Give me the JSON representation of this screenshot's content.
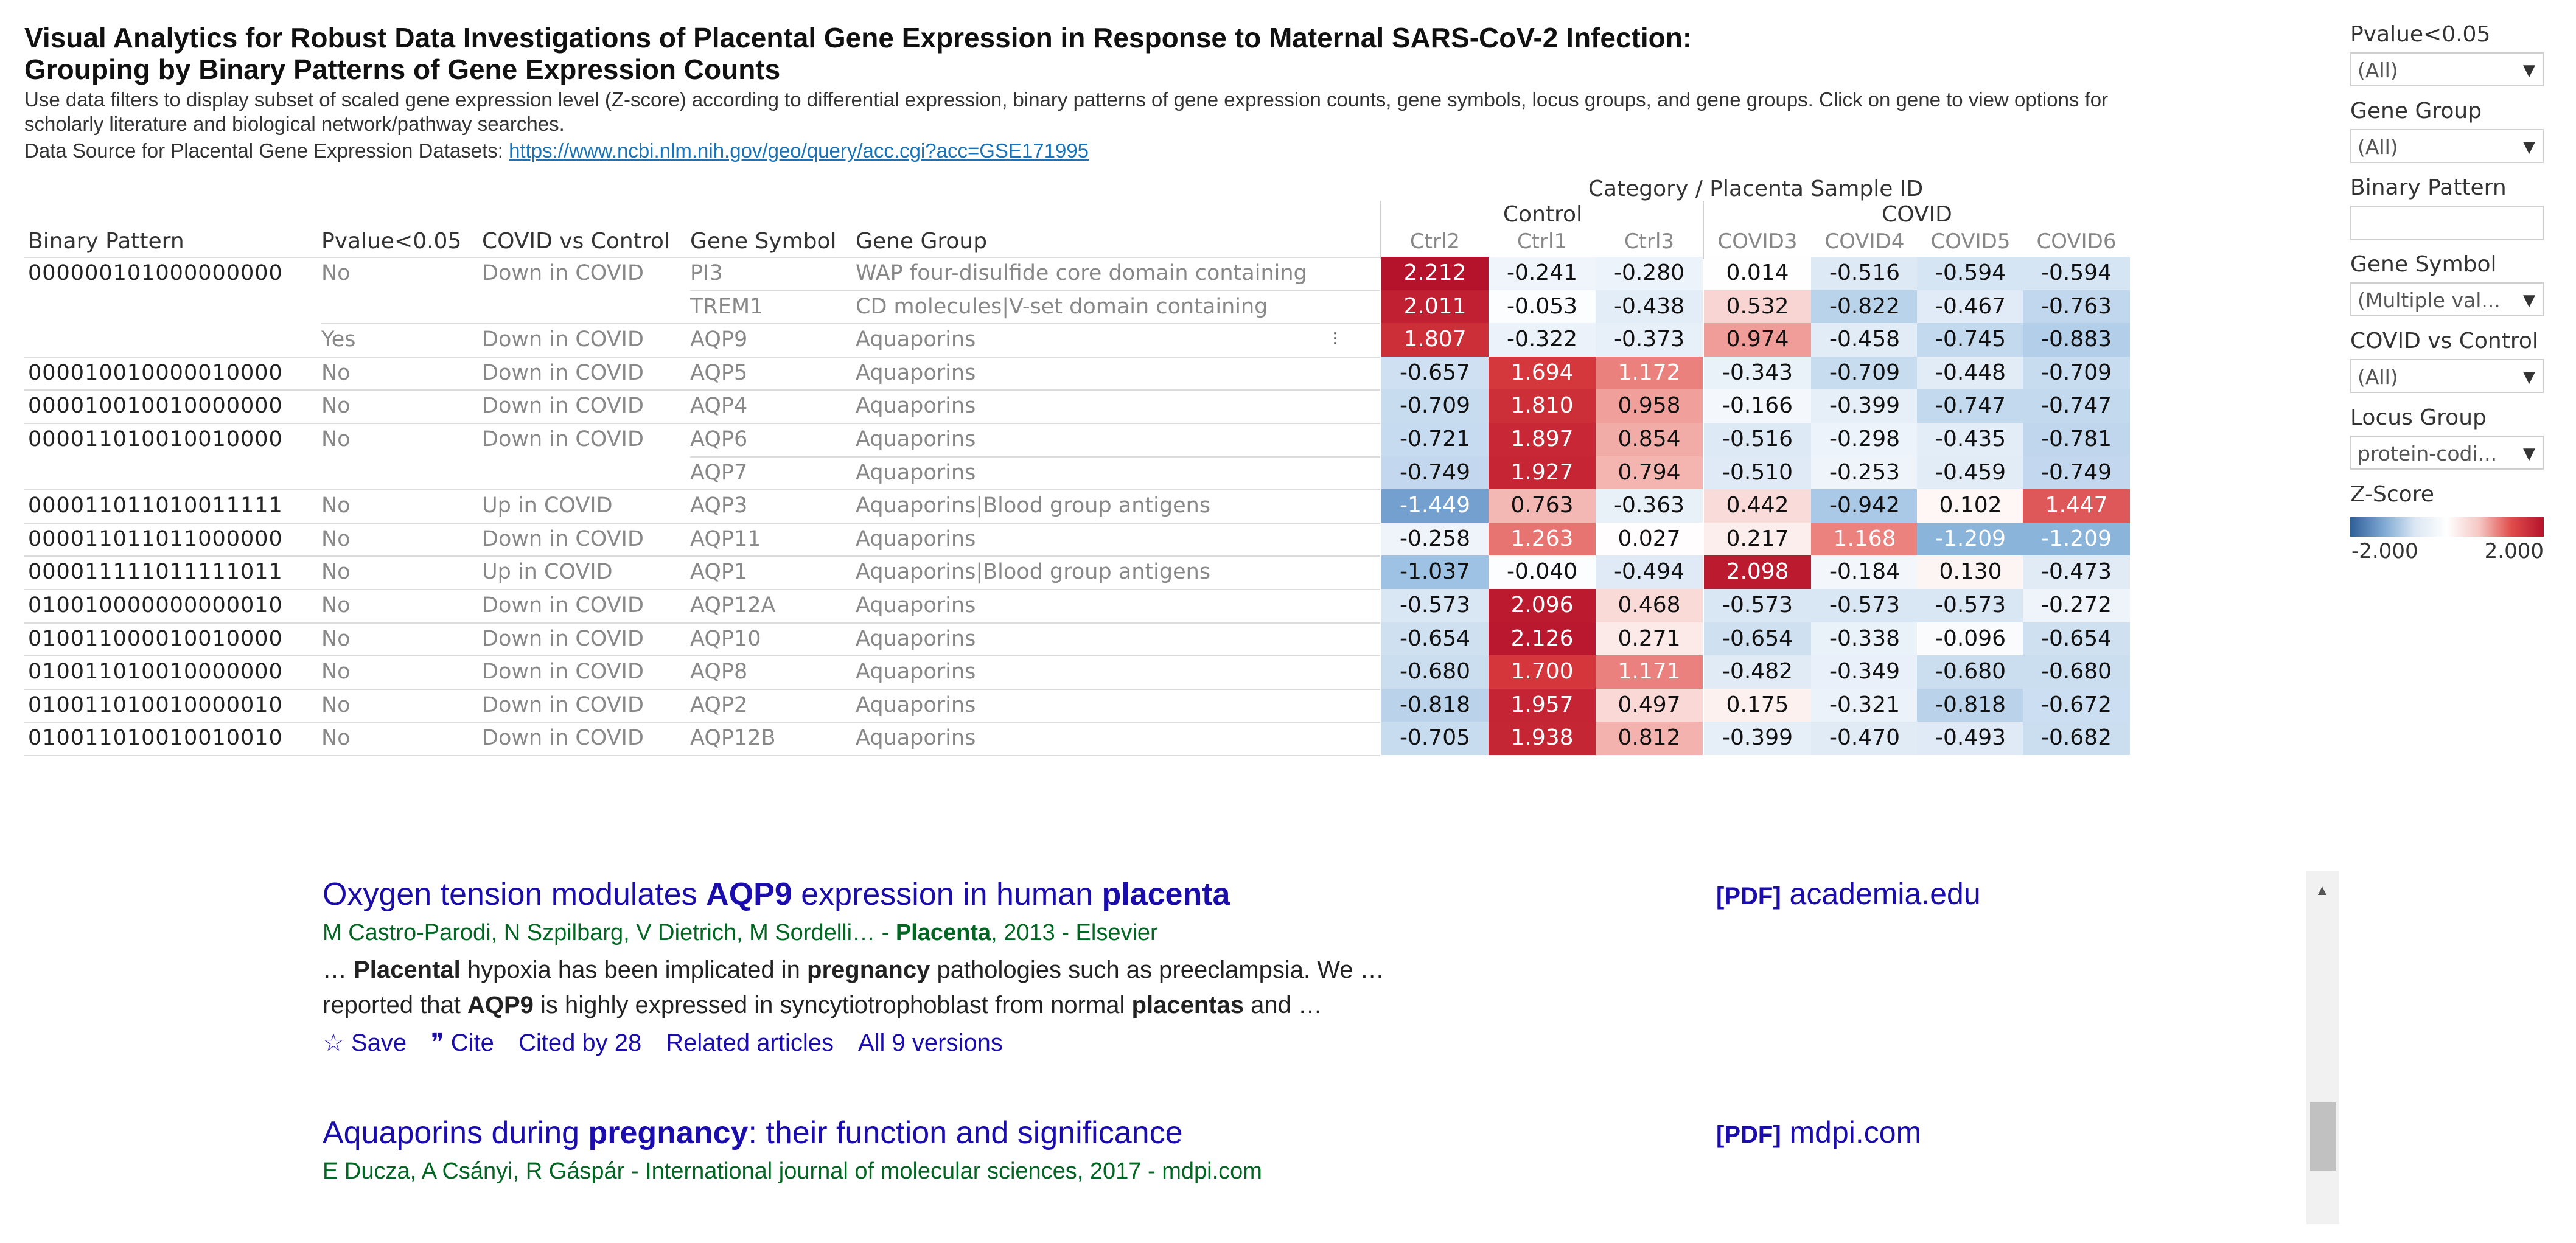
{
  "header": {
    "title_line1": "Visual Analytics for Robust Data Investigations of Placental Gene Expression in Response to Maternal SARS-CoV-2 Infection:",
    "title_line2": "Grouping by Binary Patterns of Gene Expression Counts",
    "description": "Use data filters to display subset of scaled gene expression level (Z-score) according to differential expression, binary patterns of gene expression counts, gene symbols, locus groups, and gene groups. Click on gene to view options for scholarly literature and biological network/pathway searches.",
    "source_label": "Data Source for Placental Gene Expression Datasets: ",
    "source_link": "https://www.ncbi.nlm.nih.gov/geo/query/acc.cgi?acc=GSE171995"
  },
  "table": {
    "category_header": "Category  /  Placenta Sample ID",
    "group_control": "Control",
    "group_covid": "COVID",
    "columns": {
      "binary": "Binary Pattern",
      "pvalue": "Pvalue<0.05",
      "covid_vs_control": "COVID vs Control",
      "gene_symbol": "Gene Symbol",
      "gene_group": "Gene Group"
    },
    "samples": [
      "Ctrl2",
      "Ctrl1",
      "Ctrl3",
      "COVID3",
      "COVID4",
      "COVID5",
      "COVID6"
    ],
    "rows": [
      {
        "bp": "000000101000000000",
        "pv": "No",
        "cvc": "Down in COVID",
        "sym": "PI3",
        "grp": "WAP four-disulfide core domain containing",
        "vals": [
          "2.212",
          "-0.241",
          "-0.280",
          "0.014",
          "-0.516",
          "-0.594",
          "-0.594"
        ],
        "z": [
          2.212,
          -0.241,
          -0.28,
          0.014,
          -0.516,
          -0.594,
          -0.594
        ]
      },
      {
        "bp": "",
        "pv": "",
        "cvc": "",
        "sym": "TREM1",
        "grp": "CD molecules|V-set domain containing",
        "vals": [
          "2.011",
          "-0.053",
          "-0.438",
          "0.532",
          "-0.822",
          "-0.467",
          "-0.763"
        ],
        "z": [
          2.011,
          -0.053,
          -0.438,
          0.532,
          -0.822,
          -0.467,
          -0.763
        ]
      },
      {
        "bp": "",
        "pv": "Yes",
        "cvc": "Down in COVID",
        "sym": "AQP9",
        "grp": "Aquaporins",
        "vals": [
          "1.807",
          "-0.322",
          "-0.373",
          "0.974",
          "-0.458",
          "-0.745",
          "-0.883"
        ],
        "z": [
          1.807,
          -0.322,
          -0.373,
          0.974,
          -0.458,
          -0.745,
          -0.883
        ]
      },
      {
        "bp": "000010010000010000",
        "pv": "No",
        "cvc": "Down in COVID",
        "sym": "AQP5",
        "grp": "Aquaporins",
        "vals": [
          "-0.657",
          "1.694",
          "1.172",
          "-0.343",
          "-0.709",
          "-0.448",
          "-0.709"
        ],
        "z": [
          -0.657,
          1.694,
          1.172,
          -0.343,
          -0.709,
          -0.448,
          -0.709
        ]
      },
      {
        "bp": "000010010010000000",
        "pv": "No",
        "cvc": "Down in COVID",
        "sym": "AQP4",
        "grp": "Aquaporins",
        "vals": [
          "-0.709",
          "1.810",
          "0.958",
          "-0.166",
          "-0.399",
          "-0.747",
          "-0.747"
        ],
        "z": [
          -0.709,
          1.81,
          0.958,
          -0.166,
          -0.399,
          -0.747,
          -0.747
        ]
      },
      {
        "bp": "000011010010010000",
        "pv": "No",
        "cvc": "Down in COVID",
        "sym": "AQP6",
        "grp": "Aquaporins",
        "vals": [
          "-0.721",
          "1.897",
          "0.854",
          "-0.516",
          "-0.298",
          "-0.435",
          "-0.781"
        ],
        "z": [
          -0.721,
          1.897,
          0.854,
          -0.516,
          -0.298,
          -0.435,
          -0.781
        ]
      },
      {
        "bp": "",
        "pv": "",
        "cvc": "",
        "sym": "AQP7",
        "grp": "Aquaporins",
        "vals": [
          "-0.749",
          "1.927",
          "0.794",
          "-0.510",
          "-0.253",
          "-0.459",
          "-0.749"
        ],
        "z": [
          -0.749,
          1.927,
          0.794,
          -0.51,
          -0.253,
          -0.459,
          -0.749
        ]
      },
      {
        "bp": "000011011010011111",
        "pv": "No",
        "cvc": "Up in COVID",
        "sym": "AQP3",
        "grp": "Aquaporins|Blood group antigens",
        "vals": [
          "-1.449",
          "0.763",
          "-0.363",
          "0.442",
          "-0.942",
          "0.102",
          "1.447"
        ],
        "z": [
          -1.449,
          0.763,
          -0.363,
          0.442,
          -0.942,
          0.102,
          1.447
        ]
      },
      {
        "bp": "000011011011000000",
        "pv": "No",
        "cvc": "Down in COVID",
        "sym": "AQP11",
        "grp": "Aquaporins",
        "vals": [
          "-0.258",
          "1.263",
          "0.027",
          "0.217",
          "1.168",
          "-1.209",
          "-1.209"
        ],
        "z": [
          -0.258,
          1.263,
          0.027,
          0.217,
          1.168,
          -1.209,
          -1.209
        ]
      },
      {
        "bp": "000011111011111011",
        "pv": "No",
        "cvc": "Up in COVID",
        "sym": "AQP1",
        "grp": "Aquaporins|Blood group antigens",
        "vals": [
          "-1.037",
          "-0.040",
          "-0.494",
          "2.098",
          "-0.184",
          "0.130",
          "-0.473"
        ],
        "z": [
          -1.037,
          -0.04,
          -0.494,
          2.098,
          -0.184,
          0.13,
          -0.473
        ]
      },
      {
        "bp": "010010000000000010",
        "pv": "No",
        "cvc": "Down in COVID",
        "sym": "AQP12A",
        "grp": "Aquaporins",
        "vals": [
          "-0.573",
          "2.096",
          "0.468",
          "-0.573",
          "-0.573",
          "-0.573",
          "-0.272"
        ],
        "z": [
          -0.573,
          2.096,
          0.468,
          -0.573,
          -0.573,
          -0.573,
          -0.272
        ]
      },
      {
        "bp": "010011000010010000",
        "pv": "No",
        "cvc": "Down in COVID",
        "sym": "AQP10",
        "grp": "Aquaporins",
        "vals": [
          "-0.654",
          "2.126",
          "0.271",
          "-0.654",
          "-0.338",
          "-0.096",
          "-0.654"
        ],
        "z": [
          -0.654,
          2.126,
          0.271,
          -0.654,
          -0.338,
          -0.096,
          -0.654
        ]
      },
      {
        "bp": "010011010010000000",
        "pv": "No",
        "cvc": "Down in COVID",
        "sym": "AQP8",
        "grp": "Aquaporins",
        "vals": [
          "-0.680",
          "1.700",
          "1.171",
          "-0.482",
          "-0.349",
          "-0.680",
          "-0.680"
        ],
        "z": [
          -0.68,
          1.7,
          1.171,
          -0.482,
          -0.349,
          -0.68,
          -0.68
        ]
      },
      {
        "bp": "010011010010000010",
        "pv": "No",
        "cvc": "Down in COVID",
        "sym": "AQP2",
        "grp": "Aquaporins",
        "vals": [
          "-0.818",
          "1.957",
          "0.497",
          "0.175",
          "-0.321",
          "-0.818",
          "-0.672"
        ],
        "z": [
          -0.818,
          1.957,
          0.497,
          0.175,
          -0.321,
          -0.818,
          -0.672
        ]
      },
      {
        "bp": "010011010010010010",
        "pv": "No",
        "cvc": "Down in COVID",
        "sym": "AQP12B",
        "grp": "Aquaporins",
        "vals": [
          "-0.705",
          "1.938",
          "0.812",
          "-0.399",
          "-0.470",
          "-0.493",
          "-0.682"
        ],
        "z": [
          -0.705,
          1.938,
          0.812,
          -0.399,
          -0.47,
          -0.493,
          -0.682
        ]
      }
    ]
  },
  "filters": [
    {
      "label": "Pvalue<0.05",
      "value": "(All)",
      "type": "select"
    },
    {
      "label": "Gene Group",
      "value": "(All)",
      "type": "select"
    },
    {
      "label": "Binary Pattern",
      "value": "",
      "type": "text"
    },
    {
      "label": "Gene Symbol",
      "value": "(Multiple val...",
      "type": "select"
    },
    {
      "label": "COVID vs Control",
      "value": "(All)",
      "type": "select"
    },
    {
      "label": "Locus Group",
      "value": "protein-codi...",
      "type": "select"
    }
  ],
  "legend": {
    "title": "Z-Score",
    "min": "-2.000",
    "max": "2.000"
  },
  "scholar": {
    "results": [
      {
        "title_parts": [
          [
            "Oxygen tension modulates ",
            false
          ],
          [
            "AQP9",
            true
          ],
          [
            " expression in human ",
            false
          ],
          [
            "placenta",
            true
          ]
        ],
        "authors_parts": [
          [
            "M Castro-Parodi, N Szpilbarg, V Dietrich, M Sordelli… - ",
            false
          ],
          [
            "Placenta",
            true
          ],
          [
            ", 2013 - Elsevier",
            false
          ]
        ],
        "snippet_parts": [
          [
            "… ",
            false
          ],
          [
            "Placental",
            true
          ],
          [
            " hypoxia has been implicated in ",
            false
          ],
          [
            "pregnancy",
            true
          ],
          [
            " pathologies such as preeclampsia. We … reported that ",
            false
          ],
          [
            "AQP9",
            true
          ],
          [
            " is highly expressed in syncytiotrophoblast from normal ",
            false
          ],
          [
            "placentas",
            true
          ],
          [
            " and …",
            false
          ]
        ],
        "links": [
          "Save",
          "Cite",
          "Cited by 28",
          "Related articles",
          "All 9 versions"
        ],
        "pdf_tag": "[PDF]",
        "pdf_source": "academia.edu"
      },
      {
        "title_parts": [
          [
            "Aquaporins during ",
            false
          ],
          [
            "pregnancy",
            true
          ],
          [
            ": their function and significance",
            false
          ]
        ],
        "authors_parts": [
          [
            "E Ducza, A Csányi, R Gáspár - International journal of molecular sciences, 2017 - mdpi.com",
            false
          ]
        ],
        "pdf_tag": "[PDF]",
        "pdf_source": "mdpi.com"
      }
    ]
  }
}
